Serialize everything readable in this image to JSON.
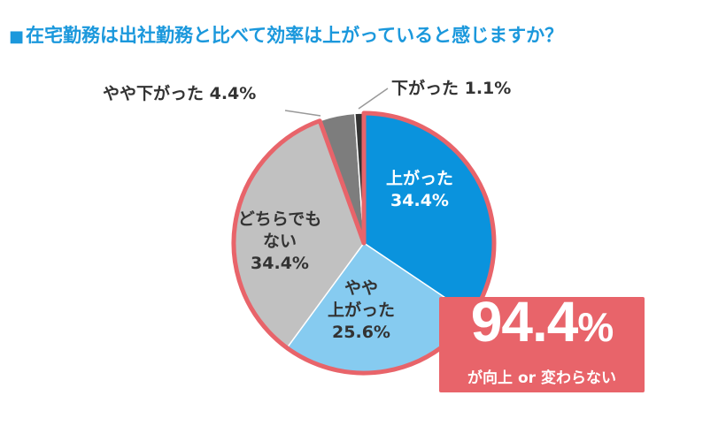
{
  "title": {
    "mark": "■",
    "text": "在宅勤務は出社勤務と比べて効率は上がっていると感じますか？"
  },
  "chart_data": {
    "type": "pie",
    "start": "12 o'clock",
    "direction": "clockwise",
    "slices": [
      {
        "name": "上がった",
        "label_lines": [
          "上がった"
        ],
        "value": 34.4,
        "value_text": "34.4%",
        "color": "#0a93dd",
        "label_color": "#ffffff",
        "label_position": "inside"
      },
      {
        "name": "やや上がった",
        "label_lines": [
          "やや",
          "上がった"
        ],
        "value": 25.6,
        "value_text": "25.6%",
        "color": "#86cbf0",
        "label_color": "#333333",
        "label_position": "inside"
      },
      {
        "name": "どちらでもない",
        "label_lines": [
          "どちらでも",
          "ない"
        ],
        "value": 34.4,
        "value_text": "34.4%",
        "color": "#c1c1c1",
        "label_color": "#333333",
        "label_position": "inside"
      },
      {
        "name": "やや下がった",
        "label_text": "やや下がった 4.4%",
        "value": 4.4,
        "value_text": "4.4%",
        "color": "#7d7d7d",
        "label_color": "#333333",
        "label_position": "outside"
      },
      {
        "name": "下がった",
        "label_text": "下がった 1.1%",
        "value": 1.1,
        "value_text": "1.1%",
        "color": "#333333",
        "label_color": "#333333",
        "label_position": "outside"
      }
    ],
    "highlight": {
      "slices": [
        "上がった",
        "やや上がった",
        "どちらでもない"
      ],
      "outline_color": "#e8646a"
    }
  },
  "callout": {
    "big_number": "94.4",
    "big_unit": "%",
    "caption": "が向上 or 変わらない",
    "background": "#e8646a"
  }
}
